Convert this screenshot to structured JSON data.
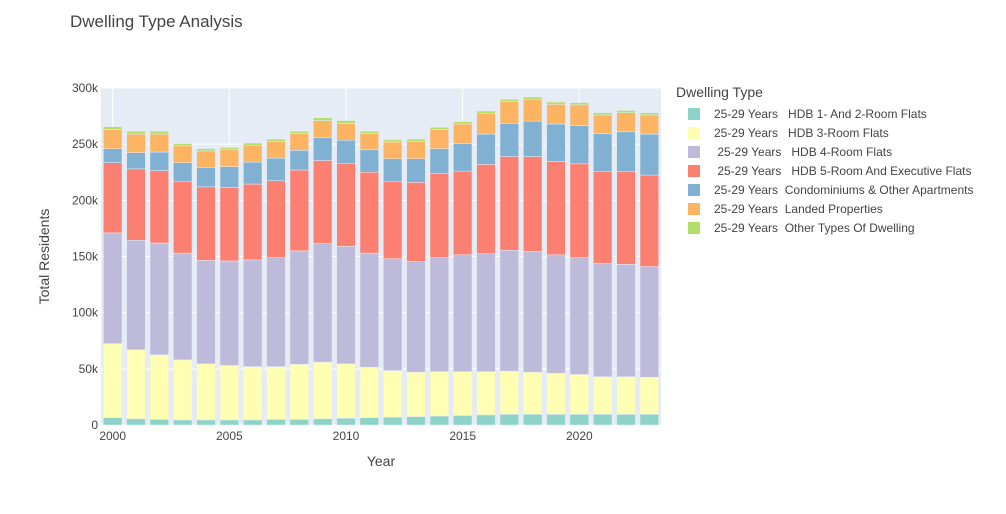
{
  "chart_data": {
    "type": "bar",
    "stacked": true,
    "title": "Dwelling Type Analysis",
    "xlabel": "Year",
    "ylabel": "Total Residents",
    "ylim": [
      0,
      300000
    ],
    "yticks": [
      0,
      50000,
      100000,
      150000,
      200000,
      250000,
      300000
    ],
    "ytick_labels": [
      "0",
      "50k",
      "100k",
      "150k",
      "200k",
      "250k",
      "300k"
    ],
    "xticks": [
      2000,
      2005,
      2010,
      2015,
      2020
    ],
    "xtick_labels": [
      "2000",
      "2005",
      "2010",
      "2015",
      "2020"
    ],
    "grid": true,
    "plot_background": "#e5ecf6",
    "legend_title": "Dwelling Type",
    "legend_position": "right",
    "x": [
      2000,
      2001,
      2002,
      2003,
      2004,
      2005,
      2006,
      2007,
      2008,
      2009,
      2010,
      2011,
      2012,
      2013,
      2014,
      2015,
      2016,
      2017,
      2018,
      2019,
      2020,
      2021,
      2022,
      2023
    ],
    "series": [
      {
        "name": "25-29 Years   HDB 1- And 2-Room Flats",
        "color": "#8dd3c7",
        "values": [
          6500,
          5500,
          5000,
          4500,
          4500,
          4500,
          4500,
          5000,
          5000,
          5500,
          6000,
          6500,
          7000,
          7500,
          8000,
          8500,
          9000,
          9500,
          9500,
          9500,
          9500,
          9500,
          9500,
          9500
        ]
      },
      {
        "name": "25-29 Years   HDB 3-Room Flats",
        "color": "#ffffb3",
        "values": [
          66000,
          61500,
          57500,
          53500,
          50000,
          48500,
          47500,
          47000,
          49000,
          50500,
          48500,
          45000,
          41500,
          39500,
          39500,
          39000,
          38500,
          38500,
          37500,
          36500,
          35500,
          33500,
          33500,
          33000
        ]
      },
      {
        "name": " 25-29 Years   HDB 4-Room Flats",
        "color": "#bebada",
        "values": [
          98500,
          97500,
          99500,
          95000,
          92000,
          93000,
          95000,
          97000,
          101000,
          105500,
          104500,
          101500,
          99500,
          98500,
          101500,
          104000,
          105000,
          107500,
          107500,
          105500,
          104000,
          101000,
          100000,
          98500
        ]
      },
      {
        "name": " 25-29 Years   HDB 5-Room And Executive Flats",
        "color": "#fb8072",
        "values": [
          62500,
          63500,
          64500,
          64000,
          65500,
          65500,
          67500,
          68500,
          72000,
          74000,
          74000,
          72000,
          69000,
          70500,
          75000,
          74500,
          79500,
          83500,
          84500,
          83000,
          83500,
          81500,
          82500,
          81500
        ]
      },
      {
        "name": "25-29 Years  Condominiums & Other Apartments",
        "color": "#80b1d3",
        "values": [
          12500,
          14500,
          16500,
          16500,
          17000,
          18500,
          19500,
          20000,
          17500,
          20500,
          20500,
          20000,
          20000,
          21000,
          22000,
          24500,
          27000,
          29500,
          31500,
          33500,
          34000,
          34000,
          35500,
          36500
        ]
      },
      {
        "name": "25-29 Years  Landed Properties",
        "color": "#fdb462",
        "values": [
          17000,
          16500,
          16000,
          15000,
          15000,
          15000,
          15000,
          15000,
          15000,
          15000,
          15000,
          14500,
          15000,
          15500,
          17000,
          17500,
          18500,
          19500,
          19500,
          17500,
          18500,
          16500,
          17000,
          17000
        ]
      },
      {
        "name": "25-29 Years  Other Types Of Dwelling",
        "color": "#b3de69",
        "values": [
          2500,
          2500,
          2500,
          2000,
          2000,
          2000,
          2000,
          2000,
          2000,
          2500,
          2500,
          2000,
          2000,
          2000,
          2000,
          2000,
          2000,
          2000,
          2000,
          2000,
          2000,
          2000,
          2000,
          2000
        ]
      }
    ]
  }
}
